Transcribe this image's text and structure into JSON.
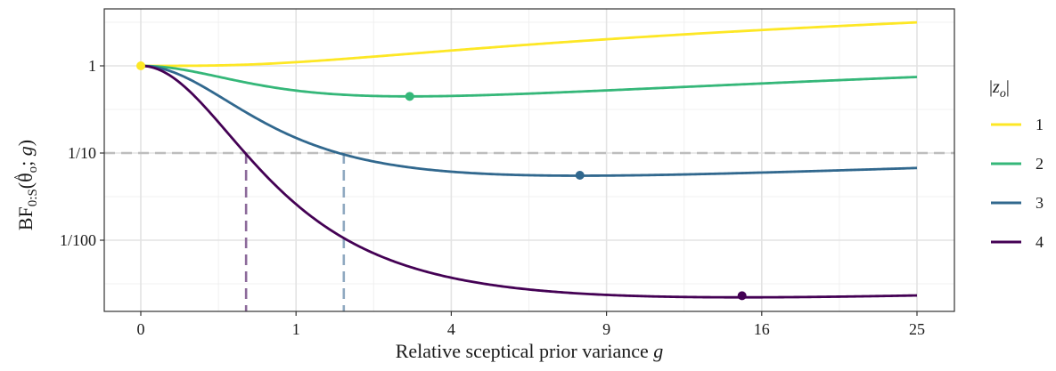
{
  "chart_data": {
    "type": "line",
    "xlabel": "Relative sceptical prior variance g",
    "xlabel_main": "Relative sceptical prior variance ",
    "xlabel_var": "g",
    "ylabel": "BF0:S(θ̂o; g)",
    "x_scale": "square-root",
    "y_scale": "log10",
    "xlim": [
      0,
      25
    ],
    "ylim_log10": [
      -2.75,
      0.65
    ],
    "x_ticks": [
      0,
      1,
      4,
      9,
      16,
      25
    ],
    "x_tick_labels": [
      "0",
      "1",
      "4",
      "9",
      "16",
      "25"
    ],
    "y_ticks": [
      1,
      0.1,
      0.01
    ],
    "y_tick_labels": [
      "1",
      "1/10",
      "1/100"
    ],
    "grid": true,
    "legend_position": "right",
    "legend_title": "|zo|",
    "reference_line": {
      "y": 0.1,
      "style": "dashed",
      "color": "#bdbdbd"
    },
    "series": [
      {
        "name": "1",
        "z": 1,
        "color": "#fde725",
        "minimum": {
          "g": 0,
          "bf": 1
        },
        "crossing": null
      },
      {
        "name": "2",
        "z": 2,
        "color": "#35b779",
        "minimum": {
          "g": 3,
          "bf": 0.4463
        },
        "crossing": null
      },
      {
        "name": "3",
        "z": 3,
        "color": "#31688e",
        "minimum": {
          "g": 8,
          "bf": 0.0556
        },
        "crossing": {
          "g": 1.71,
          "bf": 0.1,
          "color": "#8fa8c0"
        }
      },
      {
        "name": "4",
        "z": 4,
        "color": "#440154",
        "minimum": {
          "g": 15,
          "bf": 0.00231
        },
        "crossing": {
          "g": 0.46,
          "bf": 0.1,
          "color": "#8c6a9a"
        }
      }
    ]
  }
}
